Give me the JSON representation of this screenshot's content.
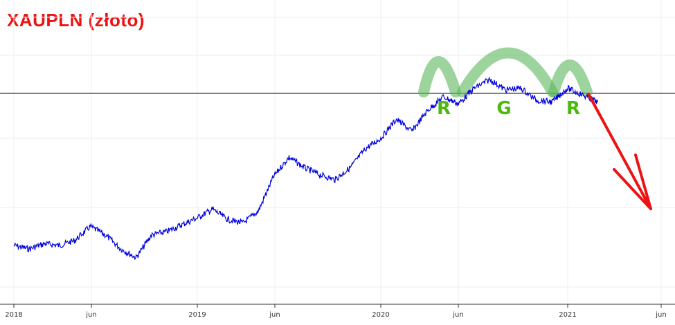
{
  "title": "XAUPLN (złoto)",
  "chart_data": {
    "type": "line",
    "title": "XAUPLN (złoto)",
    "xlabel": "",
    "ylabel": "",
    "grid": true,
    "x_ticks": [
      "2018",
      "jun",
      "2019",
      "jun",
      "2020",
      "jun",
      "2021",
      "jun"
    ],
    "x_range": [
      "2018-01",
      "2021-06"
    ],
    "series": [
      {
        "color": "#0000dd",
        "x": [
          "2018-01",
          "2018-02",
          "2018-03",
          "2018-04",
          "2018-05",
          "2018-06",
          "2018-07",
          "2018-08",
          "2018-09",
          "2018-10",
          "2018-11",
          "2018-12",
          "2019-01",
          "2019-02",
          "2019-03",
          "2019-04",
          "2019-05",
          "2019-06",
          "2019-07",
          "2019-08",
          "2019-09",
          "2019-10",
          "2019-11",
          "2019-12",
          "2020-01",
          "2020-02",
          "2020-03",
          "2020-04",
          "2020-05",
          "2020-06",
          "2020-07",
          "2020-08",
          "2020-09",
          "2020-10",
          "2020-11",
          "2020-12",
          "2021-01",
          "2021-02",
          "2021-03"
        ],
        "y": [
          0.12,
          0.1,
          0.13,
          0.12,
          0.15,
          0.23,
          0.18,
          0.1,
          0.05,
          0.18,
          0.2,
          0.24,
          0.28,
          0.33,
          0.27,
          0.25,
          0.32,
          0.52,
          0.63,
          0.57,
          0.53,
          0.5,
          0.57,
          0.68,
          0.74,
          0.85,
          0.78,
          0.9,
          0.98,
          0.94,
          1.03,
          1.08,
          1.02,
          1.03,
          0.96,
          0.95,
          1.03,
          0.99,
          0.95
        ]
      }
    ],
    "reference_line": true,
    "pattern_labels": [
      "R",
      "G",
      "R"
    ],
    "colors": {
      "price": "#0000dd",
      "arrow": "#ee1111",
      "arcs": "#5cb85c",
      "labels": "#4db80f",
      "reference": "#555555"
    }
  }
}
